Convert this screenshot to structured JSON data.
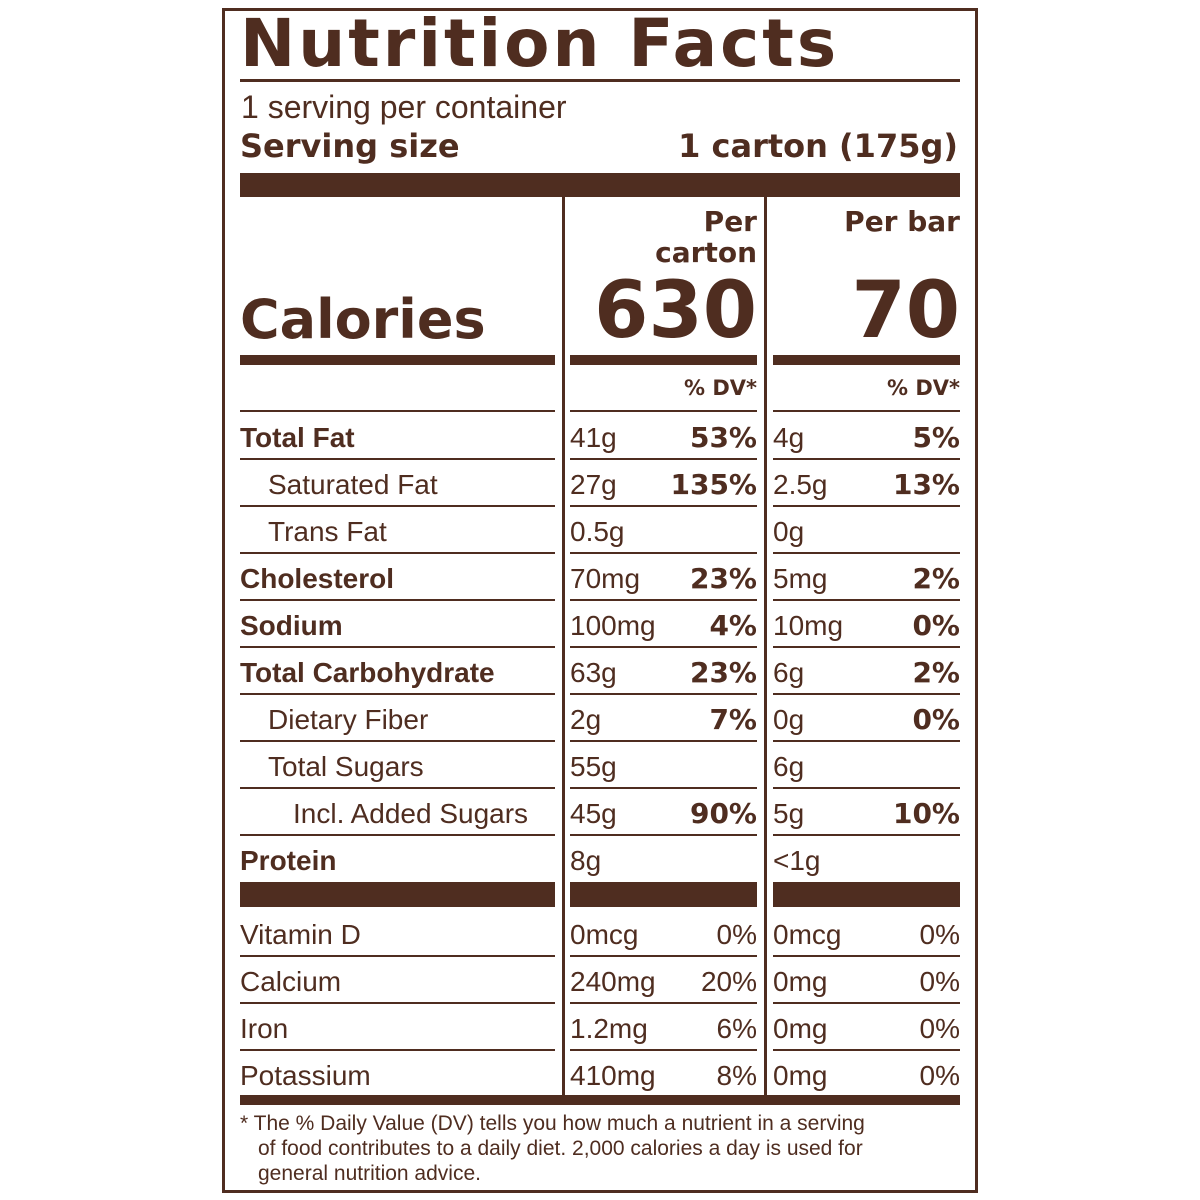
{
  "header": {
    "title": "Nutrition Facts",
    "servings": "1 serving per container",
    "serving_size_label": "Serving size",
    "serving_size": "1 carton (175g)"
  },
  "calories_label": "Calories",
  "columns": [
    {
      "heading": "Per carton",
      "calories": "630",
      "dv_heading": "% DV*"
    },
    {
      "heading": "Per bar",
      "calories": "70",
      "dv_heading": "% DV*"
    }
  ],
  "nutrients": [
    {
      "name": "Total Fat",
      "bold": true,
      "indent": 0,
      "values": [
        {
          "amount": "41g",
          "dv": "53%"
        },
        {
          "amount": "4g",
          "dv": "5%"
        }
      ]
    },
    {
      "name": "Saturated Fat",
      "bold": false,
      "indent": 1,
      "values": [
        {
          "amount": "27g",
          "dv": "135%"
        },
        {
          "amount": "2.5g",
          "dv": "13%"
        }
      ]
    },
    {
      "name": "Trans Fat",
      "bold": false,
      "indent": 1,
      "values": [
        {
          "amount": "0.5g"
        },
        {
          "amount": "0g"
        }
      ]
    },
    {
      "name": "Cholesterol",
      "bold": true,
      "indent": 0,
      "values": [
        {
          "amount": "70mg",
          "dv": "23%"
        },
        {
          "amount": "5mg",
          "dv": "2%"
        }
      ]
    },
    {
      "name": "Sodium",
      "bold": true,
      "indent": 0,
      "values": [
        {
          "amount": "100mg",
          "dv": "4%"
        },
        {
          "amount": "10mg",
          "dv": "0%"
        }
      ]
    },
    {
      "name": "Total Carbohydrate",
      "bold": true,
      "indent": 0,
      "values": [
        {
          "amount": "63g",
          "dv": "23%"
        },
        {
          "amount": "6g",
          "dv": "2%"
        }
      ]
    },
    {
      "name": "Dietary Fiber",
      "bold": false,
      "indent": 1,
      "values": [
        {
          "amount": "2g",
          "dv": "7%"
        },
        {
          "amount": "0g",
          "dv": "0%"
        }
      ]
    },
    {
      "name": "Total Sugars",
      "bold": false,
      "indent": 1,
      "values": [
        {
          "amount": "55g"
        },
        {
          "amount": "6g"
        }
      ]
    },
    {
      "name": "Incl. Added Sugars",
      "bold": false,
      "indent": 2,
      "values": [
        {
          "amount": "45g",
          "dv": "90%"
        },
        {
          "amount": "5g",
          "dv": "10%"
        }
      ]
    },
    {
      "name": "Protein",
      "bold": true,
      "indent": 0,
      "values": [
        {
          "amount": "8g"
        },
        {
          "amount": "<1g"
        }
      ]
    }
  ],
  "vitamins": [
    {
      "name": "Vitamin D",
      "values": [
        {
          "amount": "0mcg",
          "dv": "0%"
        },
        {
          "amount": "0mcg",
          "dv": "0%"
        }
      ]
    },
    {
      "name": "Calcium",
      "values": [
        {
          "amount": "240mg",
          "dv": "20%"
        },
        {
          "amount": "0mg",
          "dv": "0%"
        }
      ]
    },
    {
      "name": "Iron",
      "values": [
        {
          "amount": "1.2mg",
          "dv": "6%"
        },
        {
          "amount": "0mg",
          "dv": "0%"
        }
      ]
    },
    {
      "name": "Potassium",
      "values": [
        {
          "amount": "410mg",
          "dv": "8%"
        },
        {
          "amount": "0mg",
          "dv": "0%"
        }
      ]
    }
  ],
  "footnote": [
    "* The % Daily Value (DV) tells you how much a nutrient in a serving",
    "of food contributes to a daily diet. 2,000 calories a day is used for",
    "general nutrition advice."
  ]
}
